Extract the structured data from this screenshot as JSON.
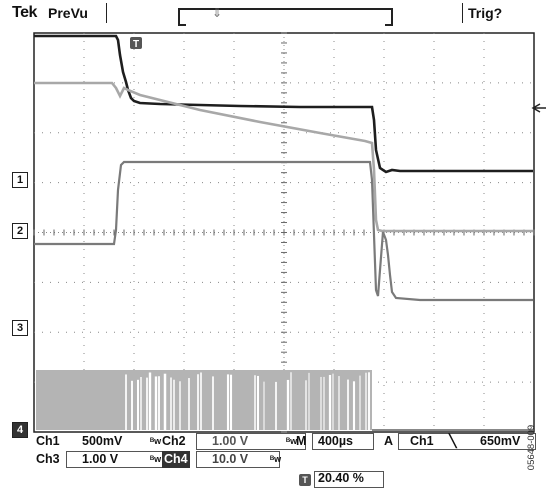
{
  "header": {
    "brand": "Tek",
    "mode": "PreVu",
    "trigger_status": "Trig?"
  },
  "channels": [
    {
      "marker": "1",
      "color": "#2a2a2a"
    },
    {
      "marker": "2",
      "color": "#8a8a8a"
    },
    {
      "marker": "3",
      "color": "#6f6f6f"
    },
    {
      "marker": "4",
      "color": "#9a9a9a"
    }
  ],
  "readout": {
    "ch1_label": "Ch1",
    "ch1_scale": "500mV",
    "ch2_label": "Ch2",
    "ch2_scale": "1.00 V",
    "ch3_label": "Ch3",
    "ch3_scale": "1.00 V",
    "ch4_label": "Ch4",
    "ch4_scale": "10.0 V",
    "time_mode": "M",
    "timebase": "400µs",
    "acq_mode": "A",
    "trig_source": "Ch1",
    "trig_slope_icon": "falling-edge-icon",
    "trig_level": "650mV",
    "trigger_position": "20.40 %"
  },
  "figure_id": "05648-009",
  "icons": {
    "trigger_marker": "trigger-t-icon",
    "trigger_level_arrow": "left-arrow-icon",
    "bandwidth_limit": "bw-limit-icon"
  }
}
